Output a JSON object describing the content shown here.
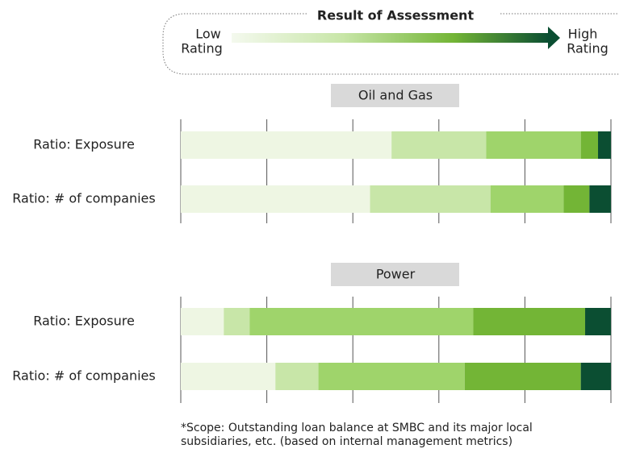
{
  "legend": {
    "title": "Result of Assessment",
    "low": [
      "Low",
      "Rating"
    ],
    "high": [
      "High",
      "Rating"
    ]
  },
  "footnote": [
    "*Scope: Outstanding loan balance at SMBC and its major local",
    "subsidiaries, etc. (based on internal management metrics)"
  ],
  "chart_data": [
    {
      "type": "stacked-bar-horizontal",
      "title": "Oil and Gas",
      "categories": [
        "Ratio: Exposure",
        "Ratio: # of companies"
      ],
      "series": [
        {
          "color": "#eef6e3",
          "values": [
            49,
            44
          ]
        },
        {
          "color": "#c8e6a8",
          "values": [
            22,
            28
          ]
        },
        {
          "color": "#9fd46b",
          "values": [
            22,
            17
          ]
        },
        {
          "color": "#73b536",
          "values": [
            4,
            6
          ]
        },
        {
          "color": "#0b4e32",
          "values": [
            3,
            5
          ]
        }
      ],
      "xlim": [
        0,
        100
      ],
      "xticks": [
        0,
        20,
        40,
        60,
        80,
        100
      ],
      "grid": true
    },
    {
      "type": "stacked-bar-horizontal",
      "title": "Power",
      "categories": [
        "Ratio: Exposure",
        "Ratio: # of companies"
      ],
      "series": [
        {
          "color": "#eef6e3",
          "values": [
            10,
            22
          ]
        },
        {
          "color": "#c8e6a8",
          "values": [
            6,
            10
          ]
        },
        {
          "color": "#9fd46b",
          "values": [
            52,
            34
          ]
        },
        {
          "color": "#73b536",
          "values": [
            26,
            27
          ]
        },
        {
          "color": "#0b4e32",
          "values": [
            6,
            7
          ]
        }
      ],
      "xlim": [
        0,
        100
      ],
      "xticks": [
        0,
        20,
        40,
        60,
        80,
        100
      ],
      "grid": true
    }
  ]
}
